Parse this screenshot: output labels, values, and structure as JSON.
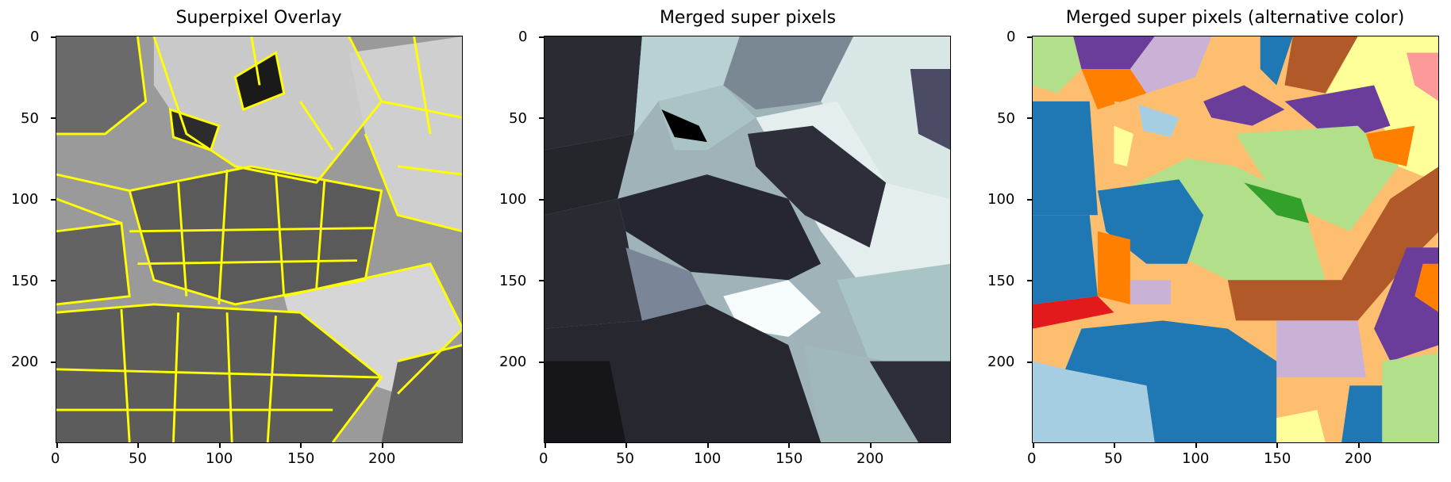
{
  "panels": [
    {
      "title": "Superpixel Overlay",
      "image": "grayscale aerial field image with yellow superpixel boundaries",
      "x_ticks": [
        "0",
        "50",
        "100",
        "150",
        "200"
      ],
      "y_ticks": [
        "0",
        "50",
        "100",
        "150",
        "200"
      ]
    },
    {
      "title": "Merged super pixels",
      "image": "merged superpixel regions in bone colormap",
      "x_ticks": [
        "0",
        "50",
        "100",
        "150",
        "200"
      ],
      "y_ticks": [
        "0",
        "50",
        "100",
        "150",
        "200"
      ]
    },
    {
      "title": "Merged super pixels (alternative color)",
      "image": "merged superpixel regions in paired qualitative colormap",
      "x_ticks": [
        "0",
        "50",
        "100",
        "150",
        "200"
      ],
      "y_ticks": [
        "0",
        "50",
        "100",
        "150",
        "200"
      ]
    }
  ],
  "colors": {
    "boundary": "#ffff00",
    "bone_dark": "#2a2a35",
    "bone_light": "#e6f0f0",
    "paired_blue": "#1f78b4",
    "paired_lightgreen": "#b2df8a",
    "paired_orange": "#ff7f00",
    "paired_purple": "#6a3d9a",
    "paired_brown": "#b15928",
    "paired_peach": "#fdbf6f",
    "paired_lilac": "#cab2d6",
    "paired_lightblue": "#a6cee3",
    "paired_red": "#e31a1c",
    "paired_yellow": "#ffff99"
  }
}
